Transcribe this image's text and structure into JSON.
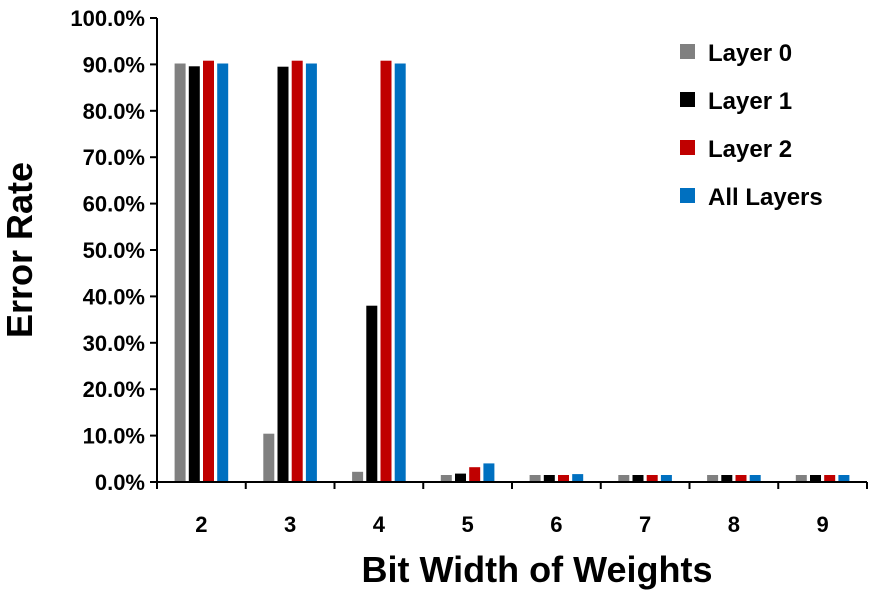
{
  "chart_data": {
    "type": "bar",
    "title": "",
    "xlabel": "Bit Width of Weights",
    "ylabel": "Error Rate",
    "categories": [
      "2",
      "3",
      "4",
      "5",
      "6",
      "7",
      "8",
      "9"
    ],
    "ylim": [
      0,
      100
    ],
    "ytick_values": [
      0,
      10,
      20,
      30,
      40,
      50,
      60,
      70,
      80,
      90,
      100
    ],
    "ytick_labels": [
      "0.0%",
      "10.0%",
      "20.0%",
      "30.0%",
      "40.0%",
      "50.0%",
      "60.0%",
      "70.0%",
      "80.0%",
      "90.0%",
      "100.0%"
    ],
    "grid": false,
    "legend_position": "top-right",
    "series": [
      {
        "name": "Layer 0",
        "color": "#808080",
        "values": [
          90.2,
          10.4,
          2.2,
          1.5,
          1.5,
          1.5,
          1.5,
          1.5
        ]
      },
      {
        "name": "Layer 1",
        "color": "#000000",
        "values": [
          89.6,
          89.5,
          38.0,
          1.8,
          1.5,
          1.5,
          1.5,
          1.5
        ]
      },
      {
        "name": "Layer 2",
        "color": "#c00000",
        "values": [
          90.8,
          90.8,
          90.8,
          3.2,
          1.5,
          1.5,
          1.5,
          1.5
        ]
      },
      {
        "name": "All Layers",
        "color": "#0070c0",
        "values": [
          90.2,
          90.2,
          90.2,
          4.0,
          1.7,
          1.5,
          1.5,
          1.5
        ]
      }
    ]
  }
}
